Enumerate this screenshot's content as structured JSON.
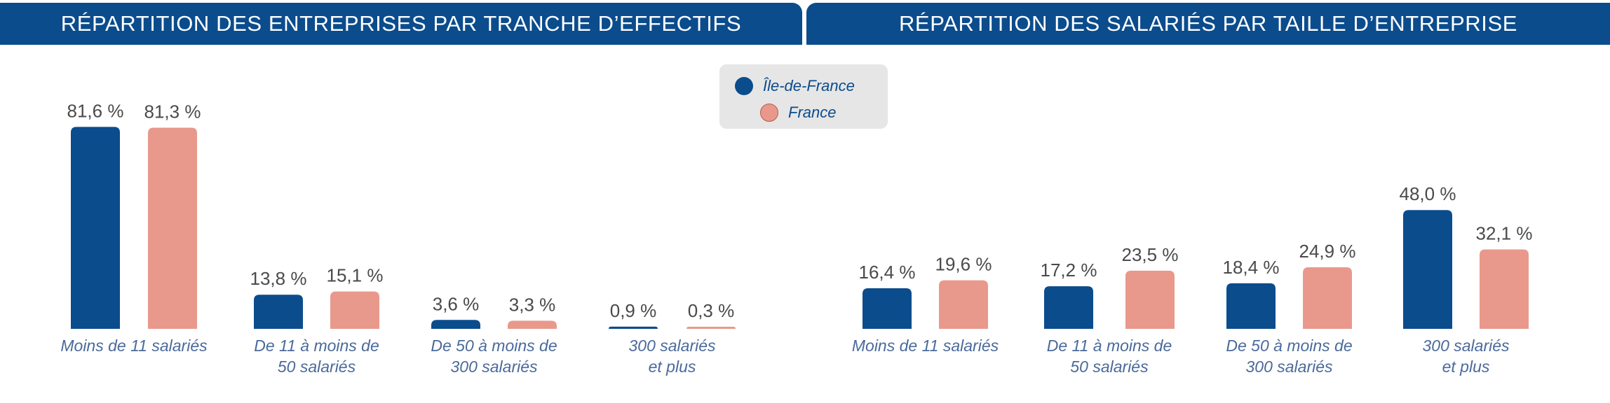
{
  "colors": {
    "header": "#0b4c8c",
    "ile_de_france": "#0b4c8c",
    "france": "#e8998b",
    "legend_bg": "#e6e6e6"
  },
  "legend": {
    "items": [
      {
        "label": "Île-de-France",
        "color": "#0b4c8c"
      },
      {
        "label": "France",
        "color": "#e8998b"
      }
    ]
  },
  "chart_data": [
    {
      "type": "bar",
      "title": "RÉPARTITION DES ENTREPRISES PAR TRANCHE D’EFFECTIFS",
      "categories": [
        [
          "Moins de 11 salariés"
        ],
        [
          "De 11 à moins de",
          "50 salariés"
        ],
        [
          "De 50 à moins de",
          "300 salariés"
        ],
        [
          "300 salariés",
          "et plus"
        ]
      ],
      "series": [
        {
          "name": "Île-de-France",
          "values": [
            81.6,
            13.8,
            3.6,
            0.9
          ],
          "labels": [
            "81,6 %",
            "13,8 %",
            "3,6 %",
            "0,9 %"
          ]
        },
        {
          "name": "France",
          "values": [
            81.3,
            15.1,
            3.3,
            0.3
          ],
          "labels": [
            "81,3 %",
            "15,1 %",
            "3,3 %",
            "0,3 %"
          ]
        }
      ],
      "ylim": [
        0,
        82
      ]
    },
    {
      "type": "bar",
      "title": "RÉPARTITION DES SALARIÉS PAR TAILLE D’ENTREPRISE",
      "categories": [
        [
          "Moins de 11 salariés"
        ],
        [
          "De 11 à moins de",
          "50 salariés"
        ],
        [
          "De 50 à moins de",
          "300 salariés"
        ],
        [
          "300 salariés",
          "et plus"
        ]
      ],
      "series": [
        {
          "name": "Île-de-France",
          "values": [
            16.4,
            17.2,
            18.4,
            48.0
          ],
          "labels": [
            "16,4 %",
            "17,2 %",
            "18,4 %",
            "48,0 %"
          ]
        },
        {
          "name": "France",
          "values": [
            19.6,
            23.5,
            24.9,
            32.1
          ],
          "labels": [
            "19,6 %",
            "23,5 %",
            "24,9 %",
            "32,1 %"
          ]
        }
      ],
      "ylim": [
        0,
        82
      ]
    }
  ]
}
